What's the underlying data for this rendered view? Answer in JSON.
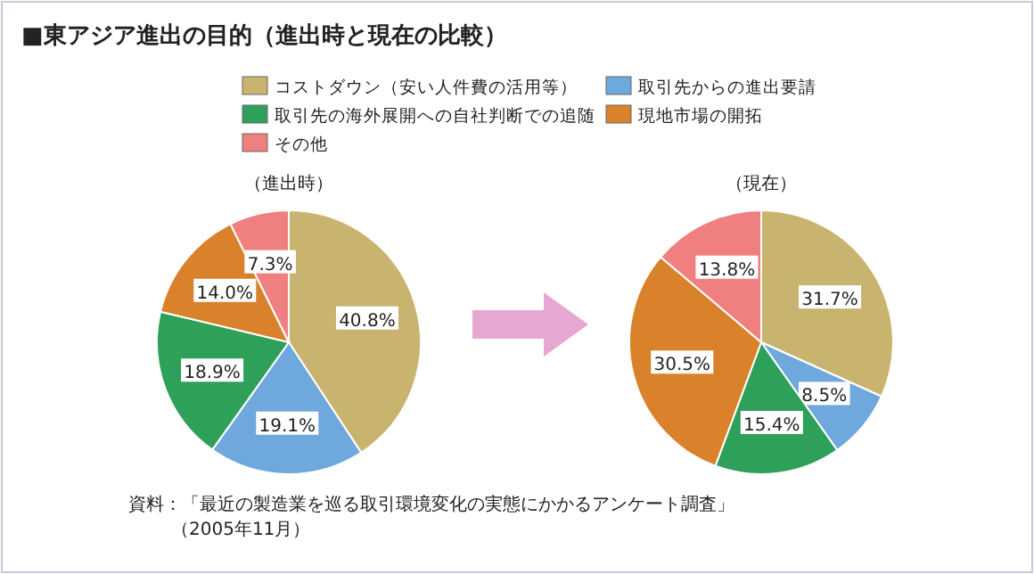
{
  "chart_data": [
    {
      "type": "pie",
      "title": "■東アジア進出の目的（進出時と現在の比較）",
      "subtitle": "（進出時）",
      "legend": "top",
      "categories": [
        "コストダウン（安い人件費の活用等）",
        "取引先からの進出要請",
        "取引先の海外展開への自社判断での追随",
        "現地市場の開拓",
        "その他"
      ],
      "values": [
        40.8,
        19.1,
        18.9,
        14.0,
        7.3
      ],
      "value_labels": [
        "40.8%",
        "19.1%",
        "18.9%",
        "14.0%",
        "7.3%"
      ],
      "colors": [
        "#c8b46e",
        "#6fa8dc",
        "#2ea05a",
        "#d9822b",
        "#f08080"
      ]
    },
    {
      "type": "pie",
      "subtitle": "（現在）",
      "categories": [
        null,
        null,
        null,
        null,
        null
      ],
      "values": [
        31.7,
        8.5,
        15.4,
        30.5,
        13.8
      ],
      "value_labels": [
        "31.7%",
        "8.5%",
        "15.4%",
        "30.5%",
        "13.8%"
      ],
      "colors": [
        "#c8b46e",
        "#6fa8dc",
        "#2ea05a",
        "#d9822b",
        "#f08080"
      ],
      "annotations": [
        "資料：「最近の製造業を巡る取引環境変化の実態にかかるアンケート調査」",
        "（2005年11月）"
      ]
    }
  ]
}
